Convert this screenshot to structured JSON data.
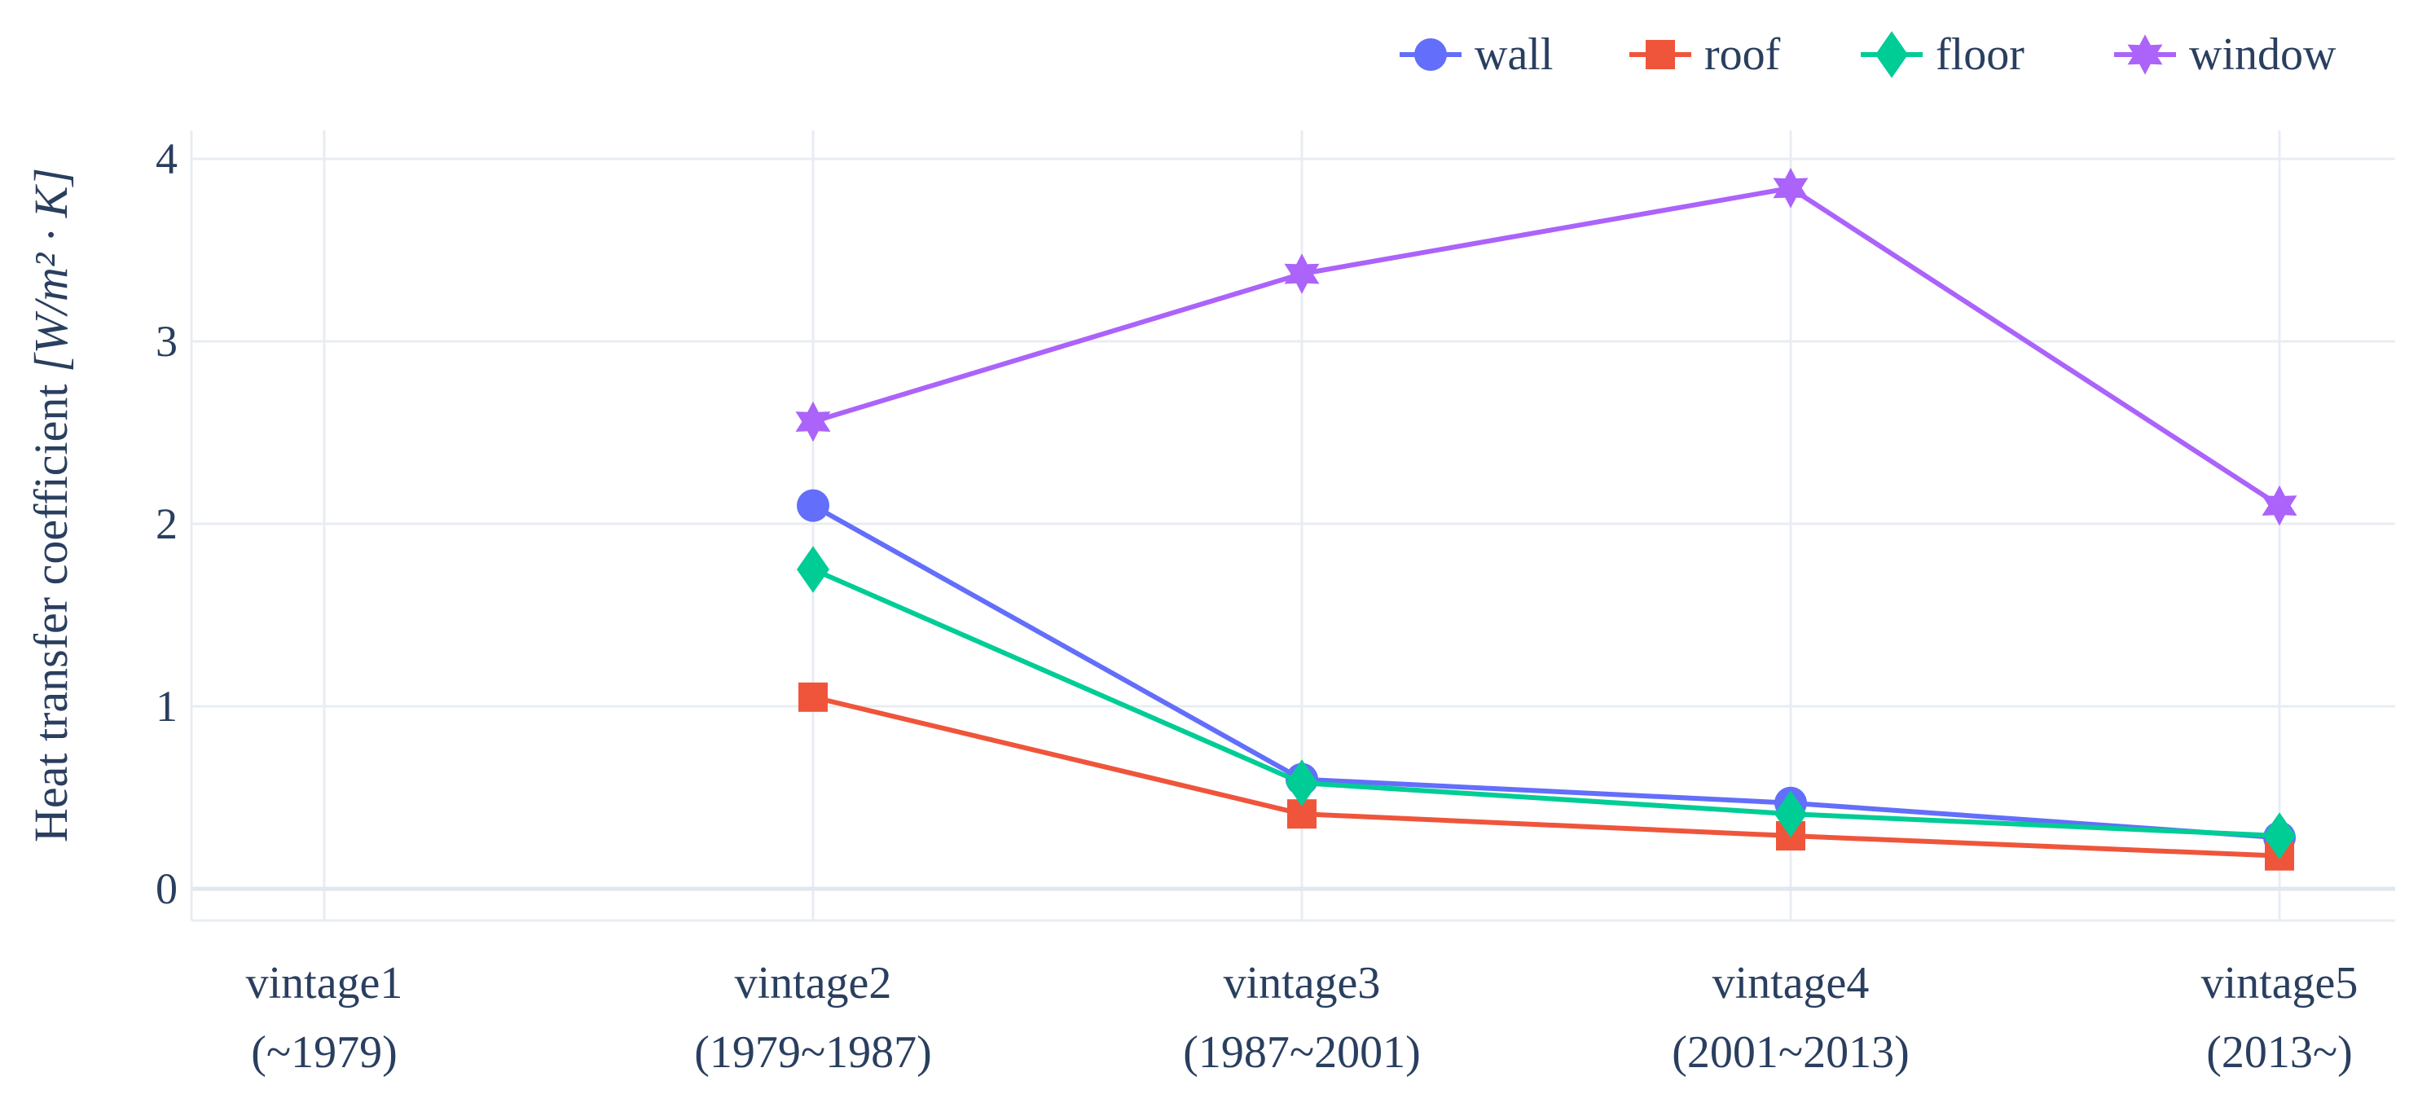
{
  "chart_data": {
    "type": "line",
    "title": "",
    "ylabel": "Heat transfer coefficient [W/m² · K]",
    "ylabel_parts": {
      "prefix": "Heat transfer coefficient",
      "unit": "[W/m² · K]"
    },
    "xlabel": "",
    "categories": [
      {
        "name": "vintage1",
        "period": "(~1979)"
      },
      {
        "name": "vintage2",
        "period": "(1979~1987)"
      },
      {
        "name": "vintage3",
        "period": "(1987~2001)"
      },
      {
        "name": "vintage4",
        "period": "(2001~2013)"
      },
      {
        "name": "vintage5",
        "period": "(2013~)"
      }
    ],
    "ylim": [
      -0.15,
      4.15
    ],
    "yticks": [
      0,
      1,
      2,
      3,
      4
    ],
    "grid": true,
    "legend_position": "top-right",
    "series": [
      {
        "name": "wall",
        "color": "#636efa",
        "marker": "circle",
        "values": [
          null,
          2.1,
          0.6,
          0.47,
          0.28
        ]
      },
      {
        "name": "roof",
        "color": "#ef553b",
        "marker": "square",
        "values": [
          null,
          1.05,
          0.41,
          0.29,
          0.18
        ]
      },
      {
        "name": "floor",
        "color": "#00cc96",
        "marker": "diamond",
        "values": [
          null,
          1.75,
          0.58,
          0.41,
          0.29
        ]
      },
      {
        "name": "window",
        "color": "#ab63fa",
        "marker": "star",
        "values": [
          null,
          2.56,
          3.37,
          3.84,
          2.1
        ]
      }
    ]
  }
}
